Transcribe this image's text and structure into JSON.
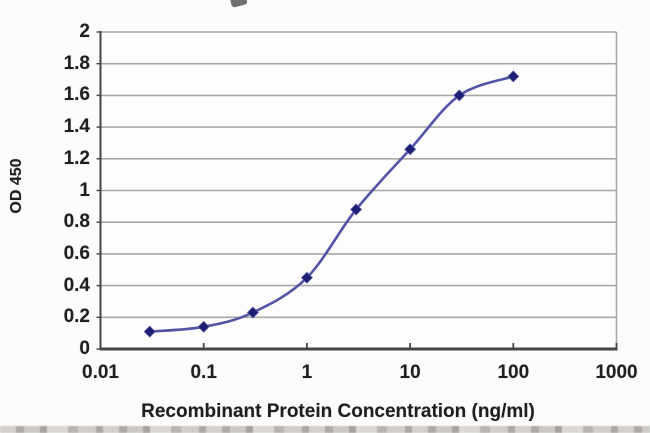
{
  "chart_data": {
    "type": "line",
    "title": "",
    "xlabel": "Recombinant Protein Concentration (ng/ml)",
    "ylabel": "OD 450",
    "x_scale": "log",
    "xlim": [
      0.01,
      1000
    ],
    "ylim": [
      0,
      2
    ],
    "x": [
      0.03,
      0.1,
      0.3,
      1,
      3,
      10,
      30,
      100
    ],
    "y": [
      0.11,
      0.14,
      0.23,
      0.45,
      0.88,
      1.26,
      1.6,
      1.72
    ],
    "xtick_labels": [
      "0.01",
      "0.1",
      "1",
      "10",
      "100",
      "1000"
    ],
    "xtick_values": [
      0.01,
      0.1,
      1,
      10,
      100,
      1000
    ],
    "ytick_labels": [
      "2",
      "1.8",
      "1.6",
      "1.4",
      "1.2",
      "1",
      "0.8",
      "0.6",
      "0.4",
      "0.2",
      "0"
    ],
    "ytick_values": [
      2,
      1.8,
      1.6,
      1.4,
      1.2,
      1,
      0.8,
      0.6,
      0.4,
      0.2,
      0
    ],
    "grid": "horizontal",
    "legend": "none",
    "marker": "diamond",
    "colors": {
      "line": "#5254a6",
      "marker": "#1d1d72",
      "gridline": "#a8a8a8",
      "axis": "#454545",
      "plot_background": "#fdfdfd"
    }
  }
}
